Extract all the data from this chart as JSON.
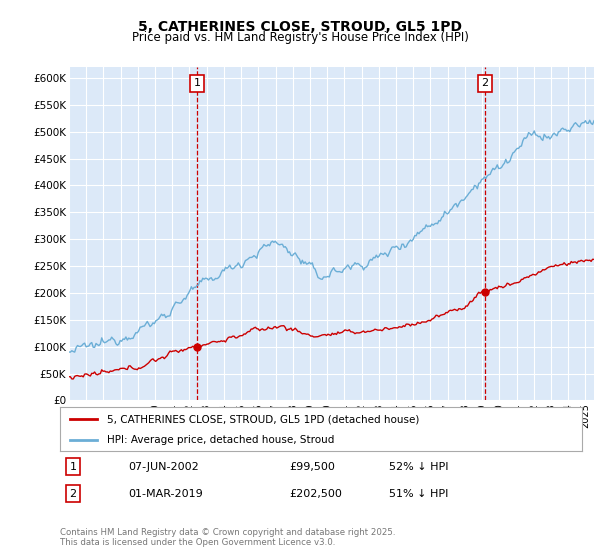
{
  "title": "5, CATHERINES CLOSE, STROUD, GL5 1PD",
  "subtitle": "Price paid vs. HM Land Registry's House Price Index (HPI)",
  "bg_color": "#dce9f8",
  "hpi_color": "#6baed6",
  "price_color": "#cc0000",
  "ylim": [
    0,
    620000
  ],
  "yticks": [
    0,
    50000,
    100000,
    150000,
    200000,
    250000,
    300000,
    350000,
    400000,
    450000,
    500000,
    550000,
    600000
  ],
  "sale1_x": 2002.44,
  "sale1_y": 99500,
  "sale2_x": 2019.17,
  "sale2_y": 202500,
  "legend_line1": "5, CATHERINES CLOSE, STROUD, GL5 1PD (detached house)",
  "legend_line2": "HPI: Average price, detached house, Stroud",
  "note1_date": "07-JUN-2002",
  "note1_price": "£99,500",
  "note1_pct": "52% ↓ HPI",
  "note2_date": "01-MAR-2019",
  "note2_price": "£202,500",
  "note2_pct": "51% ↓ HPI",
  "footer": "Contains HM Land Registry data © Crown copyright and database right 2025.\nThis data is licensed under the Open Government Licence v3.0.",
  "xmin": 1995,
  "xmax": 2025.5
}
